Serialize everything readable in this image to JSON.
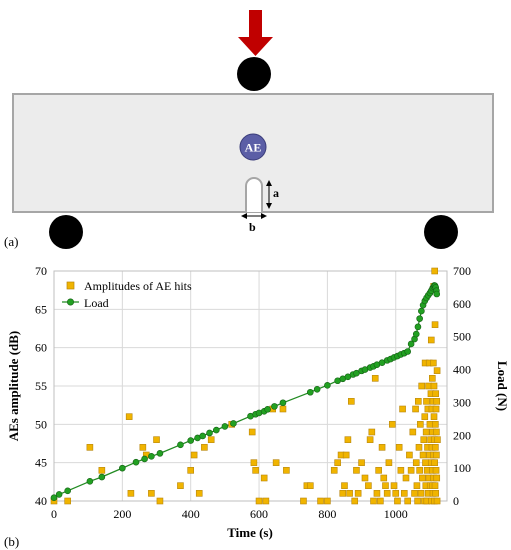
{
  "panel_a": {
    "tag": "(a)",
    "sensor_label": "AE",
    "dim_a_label": "a",
    "dim_b_label": "b",
    "colors": {
      "beam_fill": "#ececec",
      "beam_border": "#a6a6a6",
      "arrow": "#c00000",
      "sensor": "#5b5ea6",
      "support": "#000000"
    }
  },
  "panel_b": {
    "tag": "(b)"
  },
  "chart_data": {
    "type": "scatter",
    "xlabel": "Time (s)",
    "ylabel": "AEs amplitude (dB)",
    "y2label": "Load (N)",
    "xlim": [
      0,
      1150
    ],
    "ylim": [
      40,
      70
    ],
    "y2lim": [
      0,
      700
    ],
    "xticks": [
      "0",
      "200",
      "400",
      "600",
      "800",
      "1000"
    ],
    "yticks": [
      "40",
      "45",
      "50",
      "55",
      "60",
      "65",
      "70"
    ],
    "y2ticks": [
      "0",
      "100",
      "200",
      "300",
      "400",
      "500",
      "600",
      "700"
    ],
    "grid": true,
    "legend_position": "top-left",
    "series": [
      {
        "name": "Amplitudes of AE hits",
        "axis": "left",
        "marker": "square",
        "color": "#f0b400",
        "points": [
          [
            0,
            40
          ],
          [
            40,
            40
          ],
          [
            105,
            47
          ],
          [
            140,
            44
          ],
          [
            220,
            51
          ],
          [
            225,
            41
          ],
          [
            260,
            47
          ],
          [
            270,
            46
          ],
          [
            285,
            41
          ],
          [
            300,
            48
          ],
          [
            310,
            40
          ],
          [
            370,
            42
          ],
          [
            400,
            44
          ],
          [
            410,
            46
          ],
          [
            425,
            41
          ],
          [
            440,
            47
          ],
          [
            460,
            48
          ],
          [
            520,
            50
          ],
          [
            580,
            49
          ],
          [
            585,
            45
          ],
          [
            590,
            44
          ],
          [
            600,
            40
          ],
          [
            615,
            43
          ],
          [
            620,
            40
          ],
          [
            640,
            52
          ],
          [
            650,
            45
          ],
          [
            670,
            52
          ],
          [
            680,
            44
          ],
          [
            730,
            40
          ],
          [
            740,
            42
          ],
          [
            750,
            42
          ],
          [
            780,
            40
          ],
          [
            800,
            40
          ],
          [
            820,
            44
          ],
          [
            830,
            45
          ],
          [
            840,
            46
          ],
          [
            845,
            41
          ],
          [
            850,
            42
          ],
          [
            855,
            46
          ],
          [
            860,
            48
          ],
          [
            865,
            41
          ],
          [
            870,
            53
          ],
          [
            880,
            40
          ],
          [
            885,
            44
          ],
          [
            890,
            41
          ],
          [
            900,
            45
          ],
          [
            910,
            43
          ],
          [
            920,
            42
          ],
          [
            925,
            48
          ],
          [
            930,
            49
          ],
          [
            935,
            40
          ],
          [
            940,
            56
          ],
          [
            945,
            41
          ],
          [
            950,
            44
          ],
          [
            955,
            40
          ],
          [
            960,
            47
          ],
          [
            965,
            43
          ],
          [
            970,
            42
          ],
          [
            975,
            41
          ],
          [
            980,
            45
          ],
          [
            990,
            50
          ],
          [
            995,
            42
          ],
          [
            1000,
            41
          ],
          [
            1005,
            40
          ],
          [
            1010,
            47
          ],
          [
            1015,
            44
          ],
          [
            1020,
            52
          ],
          [
            1025,
            41
          ],
          [
            1030,
            43
          ],
          [
            1035,
            40
          ],
          [
            1040,
            46
          ],
          [
            1045,
            44
          ],
          [
            1050,
            49
          ],
          [
            1055,
            41
          ],
          [
            1058,
            52
          ],
          [
            1060,
            45
          ],
          [
            1062,
            42
          ],
          [
            1064,
            40
          ],
          [
            1066,
            53
          ],
          [
            1068,
            47
          ],
          [
            1070,
            44
          ],
          [
            1072,
            50
          ],
          [
            1074,
            41
          ],
          [
            1076,
            55
          ],
          [
            1078,
            43
          ],
          [
            1080,
            46
          ],
          [
            1082,
            48
          ],
          [
            1084,
            40
          ],
          [
            1085,
            51
          ],
          [
            1086,
            58
          ],
          [
            1087,
            45
          ],
          [
            1088,
            42
          ],
          [
            1089,
            49
          ],
          [
            1090,
            53
          ],
          [
            1091,
            40
          ],
          [
            1092,
            44
          ],
          [
            1093,
            47
          ],
          [
            1094,
            52
          ],
          [
            1095,
            41
          ],
          [
            1096,
            55
          ],
          [
            1097,
            43
          ],
          [
            1098,
            58
          ],
          [
            1099,
            46
          ],
          [
            1100,
            50
          ],
          [
            1101,
            42
          ],
          [
            1102,
            48
          ],
          [
            1103,
            54
          ],
          [
            1104,
            61
          ],
          [
            1104,
            45
          ],
          [
            1105,
            40
          ],
          [
            1106,
            52
          ],
          [
            1106,
            47
          ],
          [
            1107,
            44
          ],
          [
            1107,
            56
          ],
          [
            1108,
            42
          ],
          [
            1108,
            49
          ],
          [
            1109,
            53
          ],
          [
            1109,
            41
          ],
          [
            1110,
            58
          ],
          [
            1110,
            46
          ],
          [
            1111,
            68
          ],
          [
            1111,
            43
          ],
          [
            1112,
            51
          ],
          [
            1112,
            55
          ],
          [
            1113,
            40
          ],
          [
            1113,
            48
          ],
          [
            1114,
            70
          ],
          [
            1114,
            45
          ],
          [
            1115,
            63
          ],
          [
            1115,
            42
          ],
          [
            1116,
            50
          ],
          [
            1116,
            47
          ],
          [
            1117,
            54
          ],
          [
            1117,
            41
          ],
          [
            1118,
            44
          ],
          [
            1118,
            52
          ],
          [
            1119,
            46
          ],
          [
            1119,
            49
          ],
          [
            1120,
            43
          ],
          [
            1120,
            53
          ],
          [
            1121,
            40
          ],
          [
            1121,
            57
          ],
          [
            1122,
            48
          ]
        ]
      },
      {
        "name": "Load",
        "axis": "right",
        "marker": "circle",
        "color": "#22a022",
        "line_color": "#228b22",
        "points": [
          [
            0,
            10
          ],
          [
            15,
            20
          ],
          [
            40,
            31
          ],
          [
            105,
            60
          ],
          [
            140,
            73
          ],
          [
            200,
            100
          ],
          [
            240,
            118
          ],
          [
            265,
            128
          ],
          [
            285,
            136
          ],
          [
            310,
            145
          ],
          [
            370,
            171
          ],
          [
            400,
            184
          ],
          [
            420,
            192
          ],
          [
            435,
            198
          ],
          [
            455,
            207
          ],
          [
            475,
            216
          ],
          [
            500,
            227
          ],
          [
            525,
            236
          ],
          [
            575,
            258
          ],
          [
            590,
            264
          ],
          [
            600,
            268
          ],
          [
            615,
            273
          ],
          [
            625,
            279
          ],
          [
            645,
            288
          ],
          [
            670,
            299
          ],
          [
            750,
            331
          ],
          [
            770,
            340
          ],
          [
            800,
            352
          ],
          [
            830,
            366
          ],
          [
            845,
            372
          ],
          [
            860,
            378
          ],
          [
            875,
            385
          ],
          [
            885,
            389
          ],
          [
            900,
            396
          ],
          [
            910,
            400
          ],
          [
            925,
            406
          ],
          [
            935,
            410
          ],
          [
            945,
            415
          ],
          [
            960,
            421
          ],
          [
            975,
            428
          ],
          [
            985,
            432
          ],
          [
            995,
            437
          ],
          [
            1005,
            441
          ],
          [
            1015,
            446
          ],
          [
            1025,
            450
          ],
          [
            1035,
            455
          ],
          [
            1045,
            478
          ],
          [
            1055,
            493
          ],
          [
            1060,
            508
          ],
          [
            1065,
            530
          ],
          [
            1070,
            555
          ],
          [
            1075,
            578
          ],
          [
            1080,
            596
          ],
          [
            1085,
            609
          ],
          [
            1090,
            618
          ],
          [
            1095,
            626
          ],
          [
            1100,
            633
          ],
          [
            1104,
            640
          ],
          [
            1108,
            648
          ],
          [
            1111,
            652
          ],
          [
            1113,
            656
          ],
          [
            1115,
            655
          ],
          [
            1117,
            650
          ],
          [
            1119,
            640
          ],
          [
            1120,
            630
          ]
        ]
      }
    ]
  }
}
